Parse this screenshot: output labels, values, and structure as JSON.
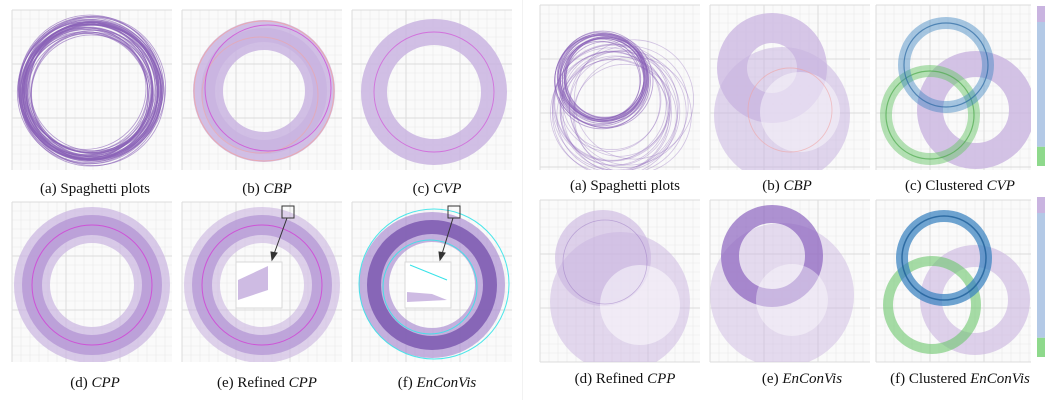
{
  "figure": {
    "left": {
      "panels": [
        {
          "id": "a",
          "prefix": "(a) ",
          "name": "Spaghetti plots",
          "italic": false,
          "kind": "spaghetti"
        },
        {
          "id": "b",
          "prefix": "(b) ",
          "name": "CBP",
          "italic": true,
          "kind": "cbp"
        },
        {
          "id": "c",
          "prefix": "(c) ",
          "name": "CVP",
          "italic": true,
          "kind": "cvp"
        },
        {
          "id": "d",
          "prefix": "(d) ",
          "name": "CPP",
          "italic": true,
          "kind": "cpp"
        },
        {
          "id": "e",
          "prefix": "(e) Refined ",
          "name": "CPP",
          "italic": true,
          "kind": "refined"
        },
        {
          "id": "f",
          "prefix": "(f) ",
          "name": "EnConVis",
          "italic": true,
          "kind": "enconvis"
        }
      ]
    },
    "right": {
      "panels": [
        {
          "id": "a",
          "prefix": "(a) ",
          "name": "Spaghetti plots",
          "italic": false,
          "kind": "spaghetti2"
        },
        {
          "id": "b",
          "prefix": "(b) ",
          "name": "CBP",
          "italic": true,
          "kind": "cbp2"
        },
        {
          "id": "c",
          "prefix": "(c) Clustered ",
          "name": "CVP",
          "italic": true,
          "kind": "ccvp"
        },
        {
          "id": "d",
          "prefix": "(d) Refined ",
          "name": "CPP",
          "italic": true,
          "kind": "rcpp2"
        },
        {
          "id": "e",
          "prefix": "(e) ",
          "name": "EnConVis",
          "italic": false,
          "kind": "enc2"
        },
        {
          "id": "f",
          "prefix": "(f) Clustered ",
          "name": "EnConVis",
          "italic": true,
          "kind": "cenc2"
        }
      ]
    },
    "colors": {
      "purple": "#8a62b8",
      "band_purple": "#c9b4e0",
      "median_magenta": "#d23ed6",
      "outlier_pink": "#f0a3a3",
      "cyan": "#38e3e8",
      "cluster_blue": "#3f86c2",
      "cluster_green": "#6cc66c",
      "grid": "#e9e9e9"
    },
    "colorbar": [
      {
        "color": "#c9b4e0",
        "share": 0.1
      },
      {
        "color": "#b3c9e6",
        "share": 0.78
      },
      {
        "color": "#8ed98c",
        "share": 0.12
      }
    ]
  }
}
